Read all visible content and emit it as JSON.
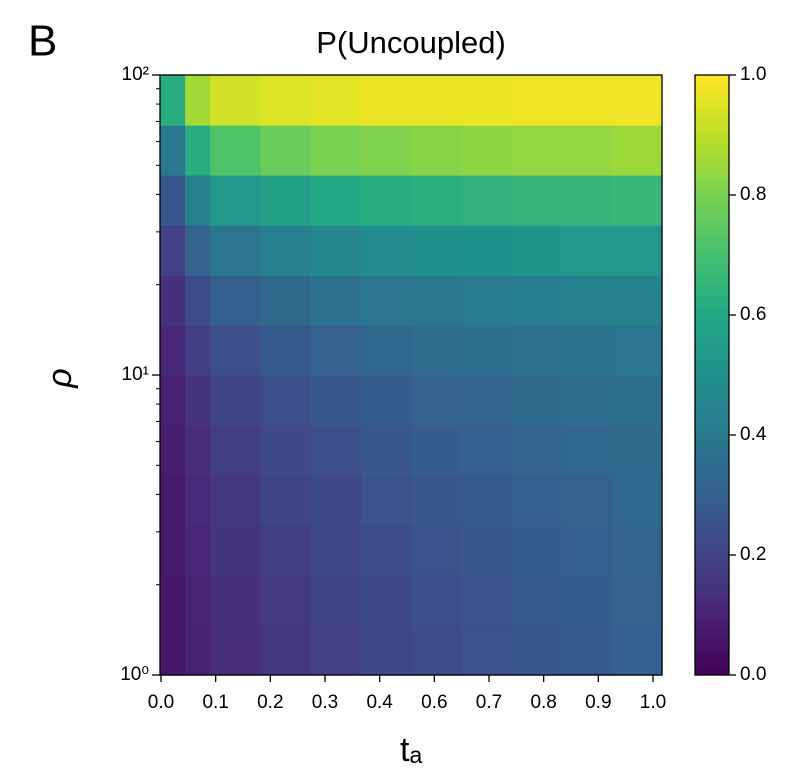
{
  "chart_data": {
    "type": "heatmap",
    "panel_label": "B",
    "title": "P(Uncoupled)",
    "xlabel": "tₐ",
    "ylabel": "ρ",
    "xtick_labels": [
      "0.0",
      "0.1",
      "0.2",
      "0.3",
      "0.4",
      "0.6",
      "0.7",
      "0.8",
      "0.9",
      "1.0"
    ],
    "xlim": [
      0,
      1
    ],
    "x_edges": [
      0,
      0.05,
      0.1,
      0.2,
      0.3,
      0.4,
      0.5,
      0.6,
      0.7,
      0.8,
      0.9,
      1.0
    ],
    "ylog": true,
    "ylim": [
      1,
      100
    ],
    "yticks": [
      {
        "value": 1,
        "label": "10⁰"
      },
      {
        "value": 10,
        "label": "10¹"
      },
      {
        "value": 100,
        "label": "10²"
      }
    ],
    "yminor_ticks": [
      2,
      3,
      4,
      5,
      6,
      7,
      8,
      9,
      20,
      30,
      40,
      50,
      60,
      70,
      80,
      90
    ],
    "y_edges": [
      1,
      1.47,
      2.15,
      3.16,
      4.64,
      6.81,
      10,
      14.7,
      21.5,
      31.6,
      46.4,
      68.1,
      100
    ],
    "z": [
      [
        0.06,
        0.09,
        0.13,
        0.16,
        0.19,
        0.21,
        0.23,
        0.25,
        0.27,
        0.28,
        0.3
      ],
      [
        0.06,
        0.1,
        0.14,
        0.17,
        0.2,
        0.22,
        0.24,
        0.26,
        0.28,
        0.29,
        0.31
      ],
      [
        0.07,
        0.11,
        0.15,
        0.18,
        0.21,
        0.23,
        0.25,
        0.27,
        0.29,
        0.3,
        0.32
      ],
      [
        0.07,
        0.12,
        0.16,
        0.2,
        0.22,
        0.25,
        0.27,
        0.28,
        0.3,
        0.31,
        0.33
      ],
      [
        0.08,
        0.13,
        0.18,
        0.22,
        0.24,
        0.27,
        0.29,
        0.3,
        0.32,
        0.33,
        0.34
      ],
      [
        0.09,
        0.15,
        0.2,
        0.24,
        0.27,
        0.29,
        0.31,
        0.32,
        0.34,
        0.35,
        0.36
      ],
      [
        0.11,
        0.18,
        0.24,
        0.28,
        0.31,
        0.33,
        0.35,
        0.36,
        0.37,
        0.38,
        0.39
      ],
      [
        0.14,
        0.23,
        0.3,
        0.34,
        0.37,
        0.39,
        0.4,
        0.41,
        0.42,
        0.43,
        0.44
      ],
      [
        0.19,
        0.31,
        0.39,
        0.43,
        0.46,
        0.48,
        0.49,
        0.5,
        0.51,
        0.52,
        0.52
      ],
      [
        0.27,
        0.43,
        0.52,
        0.57,
        0.6,
        0.62,
        0.63,
        0.64,
        0.65,
        0.65,
        0.66
      ],
      [
        0.4,
        0.62,
        0.72,
        0.77,
        0.8,
        0.81,
        0.82,
        0.83,
        0.84,
        0.84,
        0.85
      ],
      [
        0.62,
        0.86,
        0.93,
        0.95,
        0.96,
        0.97,
        0.97,
        0.97,
        0.98,
        0.98,
        0.98
      ]
    ],
    "colormap": [
      "#440154",
      "#482475",
      "#414487",
      "#355f8d",
      "#2a788e",
      "#21918c",
      "#22a884",
      "#44bf70",
      "#7ad151",
      "#bddf26",
      "#fde725"
    ],
    "clim": [
      0,
      1
    ],
    "cticks": [
      {
        "value": 0,
        "label": "0.0"
      },
      {
        "value": 0.2,
        "label": "0.2"
      },
      {
        "value": 0.4,
        "label": "0.4"
      },
      {
        "value": 0.6,
        "label": "0.6"
      },
      {
        "value": 0.8,
        "label": "0.8"
      },
      {
        "value": 1,
        "label": "1.0"
      }
    ]
  }
}
